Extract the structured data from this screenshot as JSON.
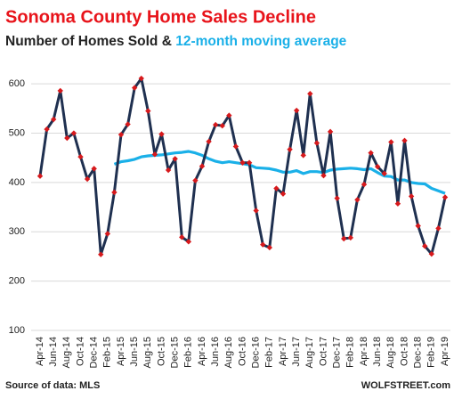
{
  "chart_data": {
    "type": "line",
    "title": "Sonoma County Home Sales Decline",
    "legend_separator": "&",
    "source": "Source of data: MLS",
    "watermark": "WOLFSTREET.com",
    "categories": [
      "Apr-14",
      null,
      "Jun-14",
      null,
      "Aug-14",
      null,
      "Oct-14",
      null,
      "Dec-14",
      null,
      "Feb-15",
      null,
      "Apr-15",
      null,
      "Jun-15",
      null,
      "Aug-15",
      null,
      "Oct-15",
      null,
      "Dec-15",
      null,
      "Feb-16",
      null,
      "Apr-16",
      null,
      "Jun-16",
      null,
      "Aug-16",
      null,
      "Oct-16",
      null,
      "Dec-16",
      null,
      "Feb-17",
      null,
      "Apr-17",
      null,
      "Jun-17",
      null,
      "Aug-17",
      null,
      "Oct-17",
      null,
      "Dec-17",
      null,
      "Feb-18",
      null,
      "Apr-18",
      null,
      "Jun-18",
      null,
      "Aug-18",
      null,
      "Oct-18",
      null,
      "Dec-18",
      null,
      "Feb-19",
      null,
      "Apr-19"
    ],
    "series": [
      {
        "name": "Number of Homes Sold",
        "color": "#1f3050",
        "marker_color": "#d7191c",
        "values": [
          413,
          508,
          528,
          586,
          490,
          500,
          452,
          407,
          428,
          254,
          296,
          380,
          497,
          518,
          592,
          611,
          545,
          457,
          498,
          425,
          448,
          289,
          280,
          404,
          433,
          483,
          517,
          515,
          536,
          473,
          440,
          440,
          343,
          274,
          268,
          388,
          377,
          467,
          546,
          455,
          580,
          480,
          414,
          503,
          368,
          286,
          288,
          365,
          396,
          460,
          432,
          418,
          482,
          357,
          485,
          372,
          312,
          271,
          255,
          307,
          370
        ]
      },
      {
        "name": "12-month moving average",
        "color": "#1ab0e8",
        "values": [
          null,
          null,
          null,
          null,
          null,
          null,
          null,
          null,
          null,
          null,
          null,
          437,
          442,
          444,
          447,
          452,
          454,
          455,
          456,
          458,
          460,
          461,
          463,
          460,
          455,
          448,
          443,
          440,
          442,
          440,
          438,
          436,
          430,
          429,
          428,
          425,
          421,
          421,
          424,
          418,
          422,
          422,
          420,
          425,
          427,
          428,
          429,
          428,
          426,
          428,
          420,
          413,
          412,
          405,
          405,
          400,
          398,
          397,
          388,
          383,
          378
        ]
      }
    ],
    "ylim": [
      100,
      640
    ],
    "yticks": [
      100,
      200,
      300,
      400,
      500,
      600
    ],
    "grid": true
  }
}
